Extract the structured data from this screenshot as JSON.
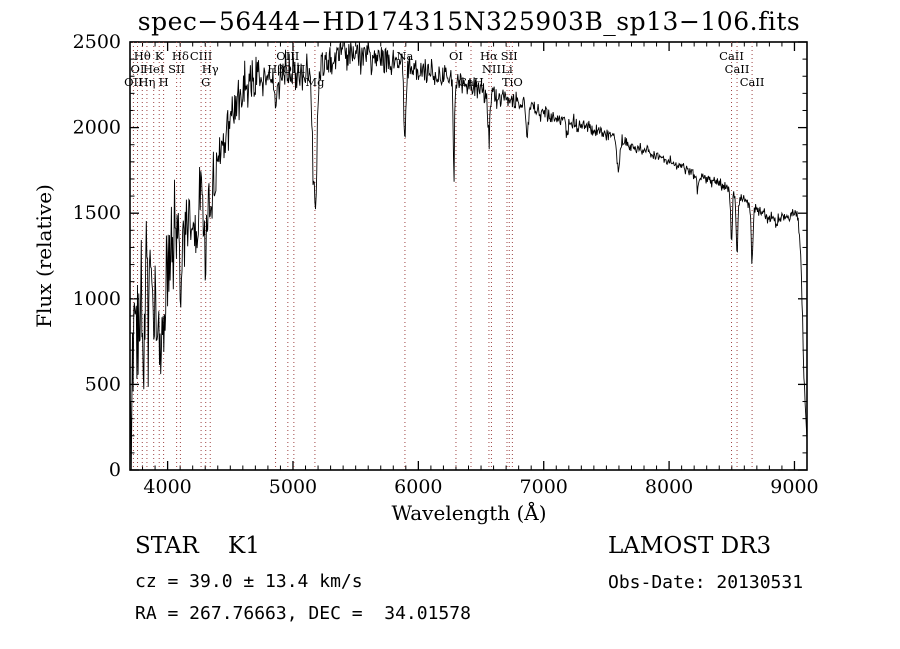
{
  "title": "spec−56444−HD174315N325903B_sp13−106.fits",
  "chart_data": {
    "type": "line",
    "title": "spec−56444−HD174315N325903B_sp13−106.fits",
    "xlabel": "Wavelength (Å)",
    "ylabel": "Flux (relative)",
    "x_range": [
      3700,
      9100
    ],
    "y_range": [
      0,
      2500
    ],
    "x_ticks": [
      4000,
      5000,
      6000,
      7000,
      8000,
      9000
    ],
    "y_ticks": [
      0,
      500,
      1000,
      1500,
      2000,
      2500
    ],
    "x_minor_step": 100,
    "y_minor_step": 100,
    "grid": false,
    "legend": false,
    "line_color": "#000000",
    "spectral_line_color": "#9e4343",
    "spectral_lines": [
      {
        "wavelength": 3727,
        "label": "OII",
        "row": 3
      },
      {
        "wavelength": 3760,
        "label": "OI",
        "row": 2
      },
      {
        "wavelength": 3798,
        "label": "Hθ",
        "row": 1
      },
      {
        "wavelength": 3835,
        "label": "Hη",
        "row": 3
      },
      {
        "wavelength": 3889,
        "label": "HeI",
        "row": 2
      },
      {
        "wavelength": 3933,
        "label": "K",
        "row": 1
      },
      {
        "wavelength": 3968,
        "label": "H",
        "row": 3
      },
      {
        "wavelength": 4072,
        "label": "SII",
        "row": 2
      },
      {
        "wavelength": 4102,
        "label": "Hδ",
        "row": 1
      },
      {
        "wavelength": 4267,
        "label": "CIII",
        "row": 1
      },
      {
        "wavelength": 4304,
        "label": "G",
        "row": 3
      },
      {
        "wavelength": 4340,
        "label": "Hγ",
        "row": 2
      },
      {
        "wavelength": 4861,
        "label": "Hβ",
        "row": 2
      },
      {
        "wavelength": 4959,
        "label": "OIII",
        "row": 1
      },
      {
        "wavelength": 5007,
        "label": "OIII",
        "row": 2
      },
      {
        "wavelength": 5175,
        "label": "Mg",
        "row": 3
      },
      {
        "wavelength": 5893,
        "label": "Na",
        "row": 1
      },
      {
        "wavelength": 6300,
        "label": "OI",
        "row": 1
      },
      {
        "wavelength": 6420,
        "label": "CaH",
        "row": 3
      },
      {
        "wavelength": 6563,
        "label": "Hα",
        "row": 1
      },
      {
        "wavelength": 6583,
        "label": "NII",
        "row": 2
      },
      {
        "wavelength": 6707,
        "label": "Li",
        "row": 2
      },
      {
        "wavelength": 6725,
        "label": "SII",
        "row": 1
      },
      {
        "wavelength": 6750,
        "label": "TiO",
        "row": 3
      },
      {
        "wavelength": 8498,
        "label": "CaII",
        "row": 1
      },
      {
        "wavelength": 8542,
        "label": "CaII",
        "row": 2
      },
      {
        "wavelength": 8662,
        "label": "CaII",
        "row": 3
      }
    ],
    "envelope": [
      [
        3700,
        250
      ],
      [
        3720,
        560
      ],
      [
        3750,
        800
      ],
      [
        3800,
        900
      ],
      [
        3850,
        1020
      ],
      [
        3900,
        1080
      ],
      [
        3950,
        1100
      ],
      [
        4000,
        1260
      ],
      [
        4060,
        1330
      ],
      [
        4120,
        1400
      ],
      [
        4180,
        1550
      ],
      [
        4240,
        1640
      ],
      [
        4300,
        1620
      ],
      [
        4360,
        1660
      ],
      [
        4420,
        1850
      ],
      [
        4500,
        2060
      ],
      [
        4600,
        2210
      ],
      [
        4700,
        2280
      ],
      [
        4800,
        2310
      ],
      [
        4900,
        2320
      ],
      [
        5000,
        2330
      ],
      [
        5100,
        2345
      ],
      [
        5250,
        2360
      ],
      [
        5400,
        2440
      ],
      [
        5550,
        2430
      ],
      [
        5700,
        2400
      ],
      [
        5850,
        2370
      ],
      [
        6000,
        2330
      ],
      [
        6150,
        2310
      ],
      [
        6300,
        2270
      ],
      [
        6450,
        2240
      ],
      [
        6600,
        2190
      ],
      [
        6750,
        2150
      ],
      [
        6900,
        2110
      ],
      [
        7050,
        2070
      ],
      [
        7200,
        2030
      ],
      [
        7350,
        2000
      ],
      [
        7500,
        1960
      ],
      [
        7650,
        1910
      ],
      [
        7800,
        1860
      ],
      [
        7950,
        1820
      ],
      [
        8100,
        1770
      ],
      [
        8250,
        1710
      ],
      [
        8400,
        1670
      ],
      [
        8550,
        1600
      ],
      [
        8650,
        1550
      ],
      [
        8750,
        1500
      ],
      [
        8850,
        1460
      ],
      [
        8950,
        1470
      ],
      [
        9020,
        1510
      ],
      [
        9050,
        1300
      ],
      [
        9070,
        700
      ],
      [
        9085,
        350
      ],
      [
        9100,
        230
      ]
    ],
    "absorption_features": [
      {
        "center": 3933,
        "sigma": 12,
        "depth": 380
      },
      {
        "center": 3968,
        "sigma": 11,
        "depth": 330
      },
      {
        "center": 4102,
        "sigma": 9,
        "depth": 260
      },
      {
        "center": 4227,
        "sigma": 7,
        "depth": 180
      },
      {
        "center": 4305,
        "sigma": 13,
        "depth": 280
      },
      {
        "center": 4340,
        "sigma": 9,
        "depth": 220
      },
      {
        "center": 4861,
        "sigma": 9,
        "depth": 230
      },
      {
        "center": 5175,
        "sigma": 17,
        "depth": 820
      },
      {
        "center": 5893,
        "sigma": 10,
        "depth": 420
      },
      {
        "center": 6283,
        "sigma": 5,
        "depth": 580
      },
      {
        "center": 6563,
        "sigma": 8,
        "depth": 300
      },
      {
        "center": 6867,
        "sigma": 8,
        "depth": 190
      },
      {
        "center": 7186,
        "sigma": 8,
        "depth": 90
      },
      {
        "center": 7594,
        "sigma": 10,
        "depth": 200
      },
      {
        "center": 8227,
        "sigma": 6,
        "depth": 90
      },
      {
        "center": 8498,
        "sigma": 6,
        "depth": 290
      },
      {
        "center": 8542,
        "sigma": 7,
        "depth": 340
      },
      {
        "center": 8662,
        "sigma": 7,
        "depth": 330
      }
    ],
    "noise_profile": [
      [
        3700,
        300
      ],
      [
        3800,
        280
      ],
      [
        3900,
        260
      ],
      [
        4000,
        230
      ],
      [
        4150,
        190
      ],
      [
        4300,
        160
      ],
      [
        4450,
        120
      ],
      [
        4600,
        100
      ],
      [
        4800,
        85
      ],
      [
        5000,
        80
      ],
      [
        5300,
        75
      ],
      [
        5600,
        65
      ],
      [
        5900,
        60
      ],
      [
        6200,
        50
      ],
      [
        6500,
        45
      ],
      [
        6800,
        38
      ],
      [
        7100,
        30
      ],
      [
        7400,
        26
      ],
      [
        7700,
        24
      ],
      [
        8000,
        22
      ],
      [
        8300,
        24
      ],
      [
        8600,
        26
      ],
      [
        8900,
        25
      ],
      [
        9040,
        35
      ],
      [
        9100,
        55
      ]
    ],
    "sample_step": 5,
    "noise_seed": 20130531
  },
  "footer": {
    "class_label": "STAR    K1",
    "survey": "LAMOST DR3",
    "cz": "cz = 39.0 ± 13.4 km/s",
    "obs_date": "Obs-Date: 20130531",
    "ra_dec": "RA = 267.76663, DEC =  34.01578"
  }
}
